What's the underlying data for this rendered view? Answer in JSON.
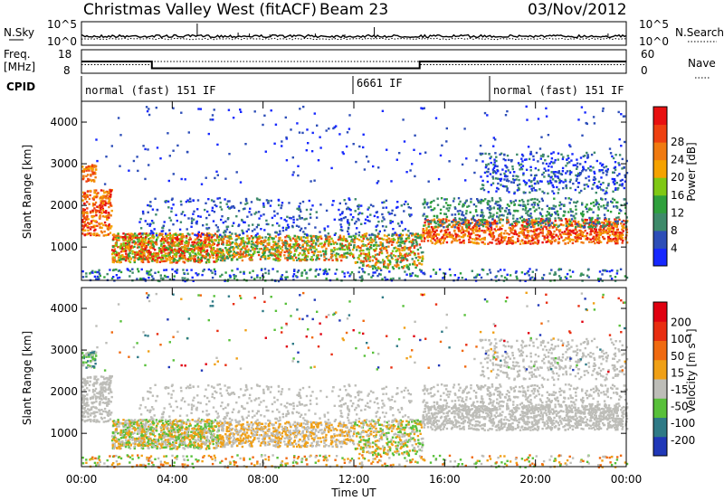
{
  "header": {
    "station_title": "Christmas Valley West (fitACF)",
    "beam": "Beam 23",
    "date": "03/Nov/2012"
  },
  "chart_data": [
    {
      "type": "line",
      "panel": "noise",
      "left_label": "N.Sky",
      "right_label": "N.Search",
      "left_ticks": [
        "10^5",
        "10^0"
      ],
      "right_ticks": [
        "10^5",
        "10^0"
      ],
      "scale": "log",
      "ylim": [
        1,
        100000
      ]
    },
    {
      "type": "line",
      "panel": "frequency",
      "left_label_lines": [
        "Freq.",
        "[MHz]"
      ],
      "right_label": "Nave",
      "left_ticks": [
        "18",
        "8"
      ],
      "right_ticks": [
        "60",
        "0"
      ],
      "ylim_left": [
        8,
        18
      ],
      "ylim_right": [
        0,
        60
      ],
      "freq_series": {
        "x_hours": [
          0,
          3.1,
          3.1,
          14.9,
          14.9,
          24
        ],
        "values": [
          13.0,
          13.0,
          10.1,
          10.1,
          13.0,
          13.0
        ]
      },
      "nave_series": {
        "x_hours": [
          0,
          3.1,
          3.1,
          14.9,
          14.9,
          24
        ],
        "values": [
          22,
          22,
          30,
          30,
          22,
          22
        ]
      }
    },
    {
      "type": "table",
      "panel": "cpid",
      "label": "CPID",
      "segments": [
        {
          "start": 0,
          "end": 12.0,
          "text": "normal (fast) 151 IF"
        },
        {
          "start": 12.0,
          "end": 18.0,
          "text": "6661 IF"
        },
        {
          "start": 18.0,
          "end": 24,
          "text": "normal (fast) 151 IF"
        }
      ]
    },
    {
      "type": "heatmap",
      "panel": "power",
      "ylabel": "Slant Range [km]",
      "yticks": [
        "1000",
        "2000",
        "3000",
        "4000"
      ],
      "ylim": [
        200,
        4500
      ],
      "colorbar_label": "Power [dB]",
      "colorbar_ticks": [
        "4",
        "8",
        "12",
        "16",
        "20",
        "24",
        "28"
      ],
      "colorbar_colors": [
        "#1628ff",
        "#2d4eb8",
        "#3e8a6a",
        "#2fa03c",
        "#7fc814",
        "#f5a200",
        "#f07a10",
        "#ee4010",
        "#e81010"
      ]
    },
    {
      "type": "heatmap",
      "panel": "velocity",
      "ylabel": "Slant Range [km]",
      "yticks": [
        "1000",
        "2000",
        "3000",
        "4000"
      ],
      "ylim": [
        200,
        4500
      ],
      "xlabel": "Time UT",
      "xticks": [
        "00:00",
        "04:00",
        "08:00",
        "12:00",
        "16:00",
        "20:00",
        "00:00"
      ],
      "xlim_hours": [
        0,
        24
      ],
      "colorbar_label": "Velocity [m s⁻¹]",
      "colorbar_ticks": [
        "200",
        "100",
        "50",
        "15",
        "-15",
        "-50",
        "-100",
        "-200"
      ],
      "colorbar_colors": [
        "#2038b8",
        "#2f7a86",
        "#58c03a",
        "#bdbdb8",
        "#f0a016",
        "#f06a10",
        "#e82d10",
        "#e00010"
      ]
    }
  ]
}
